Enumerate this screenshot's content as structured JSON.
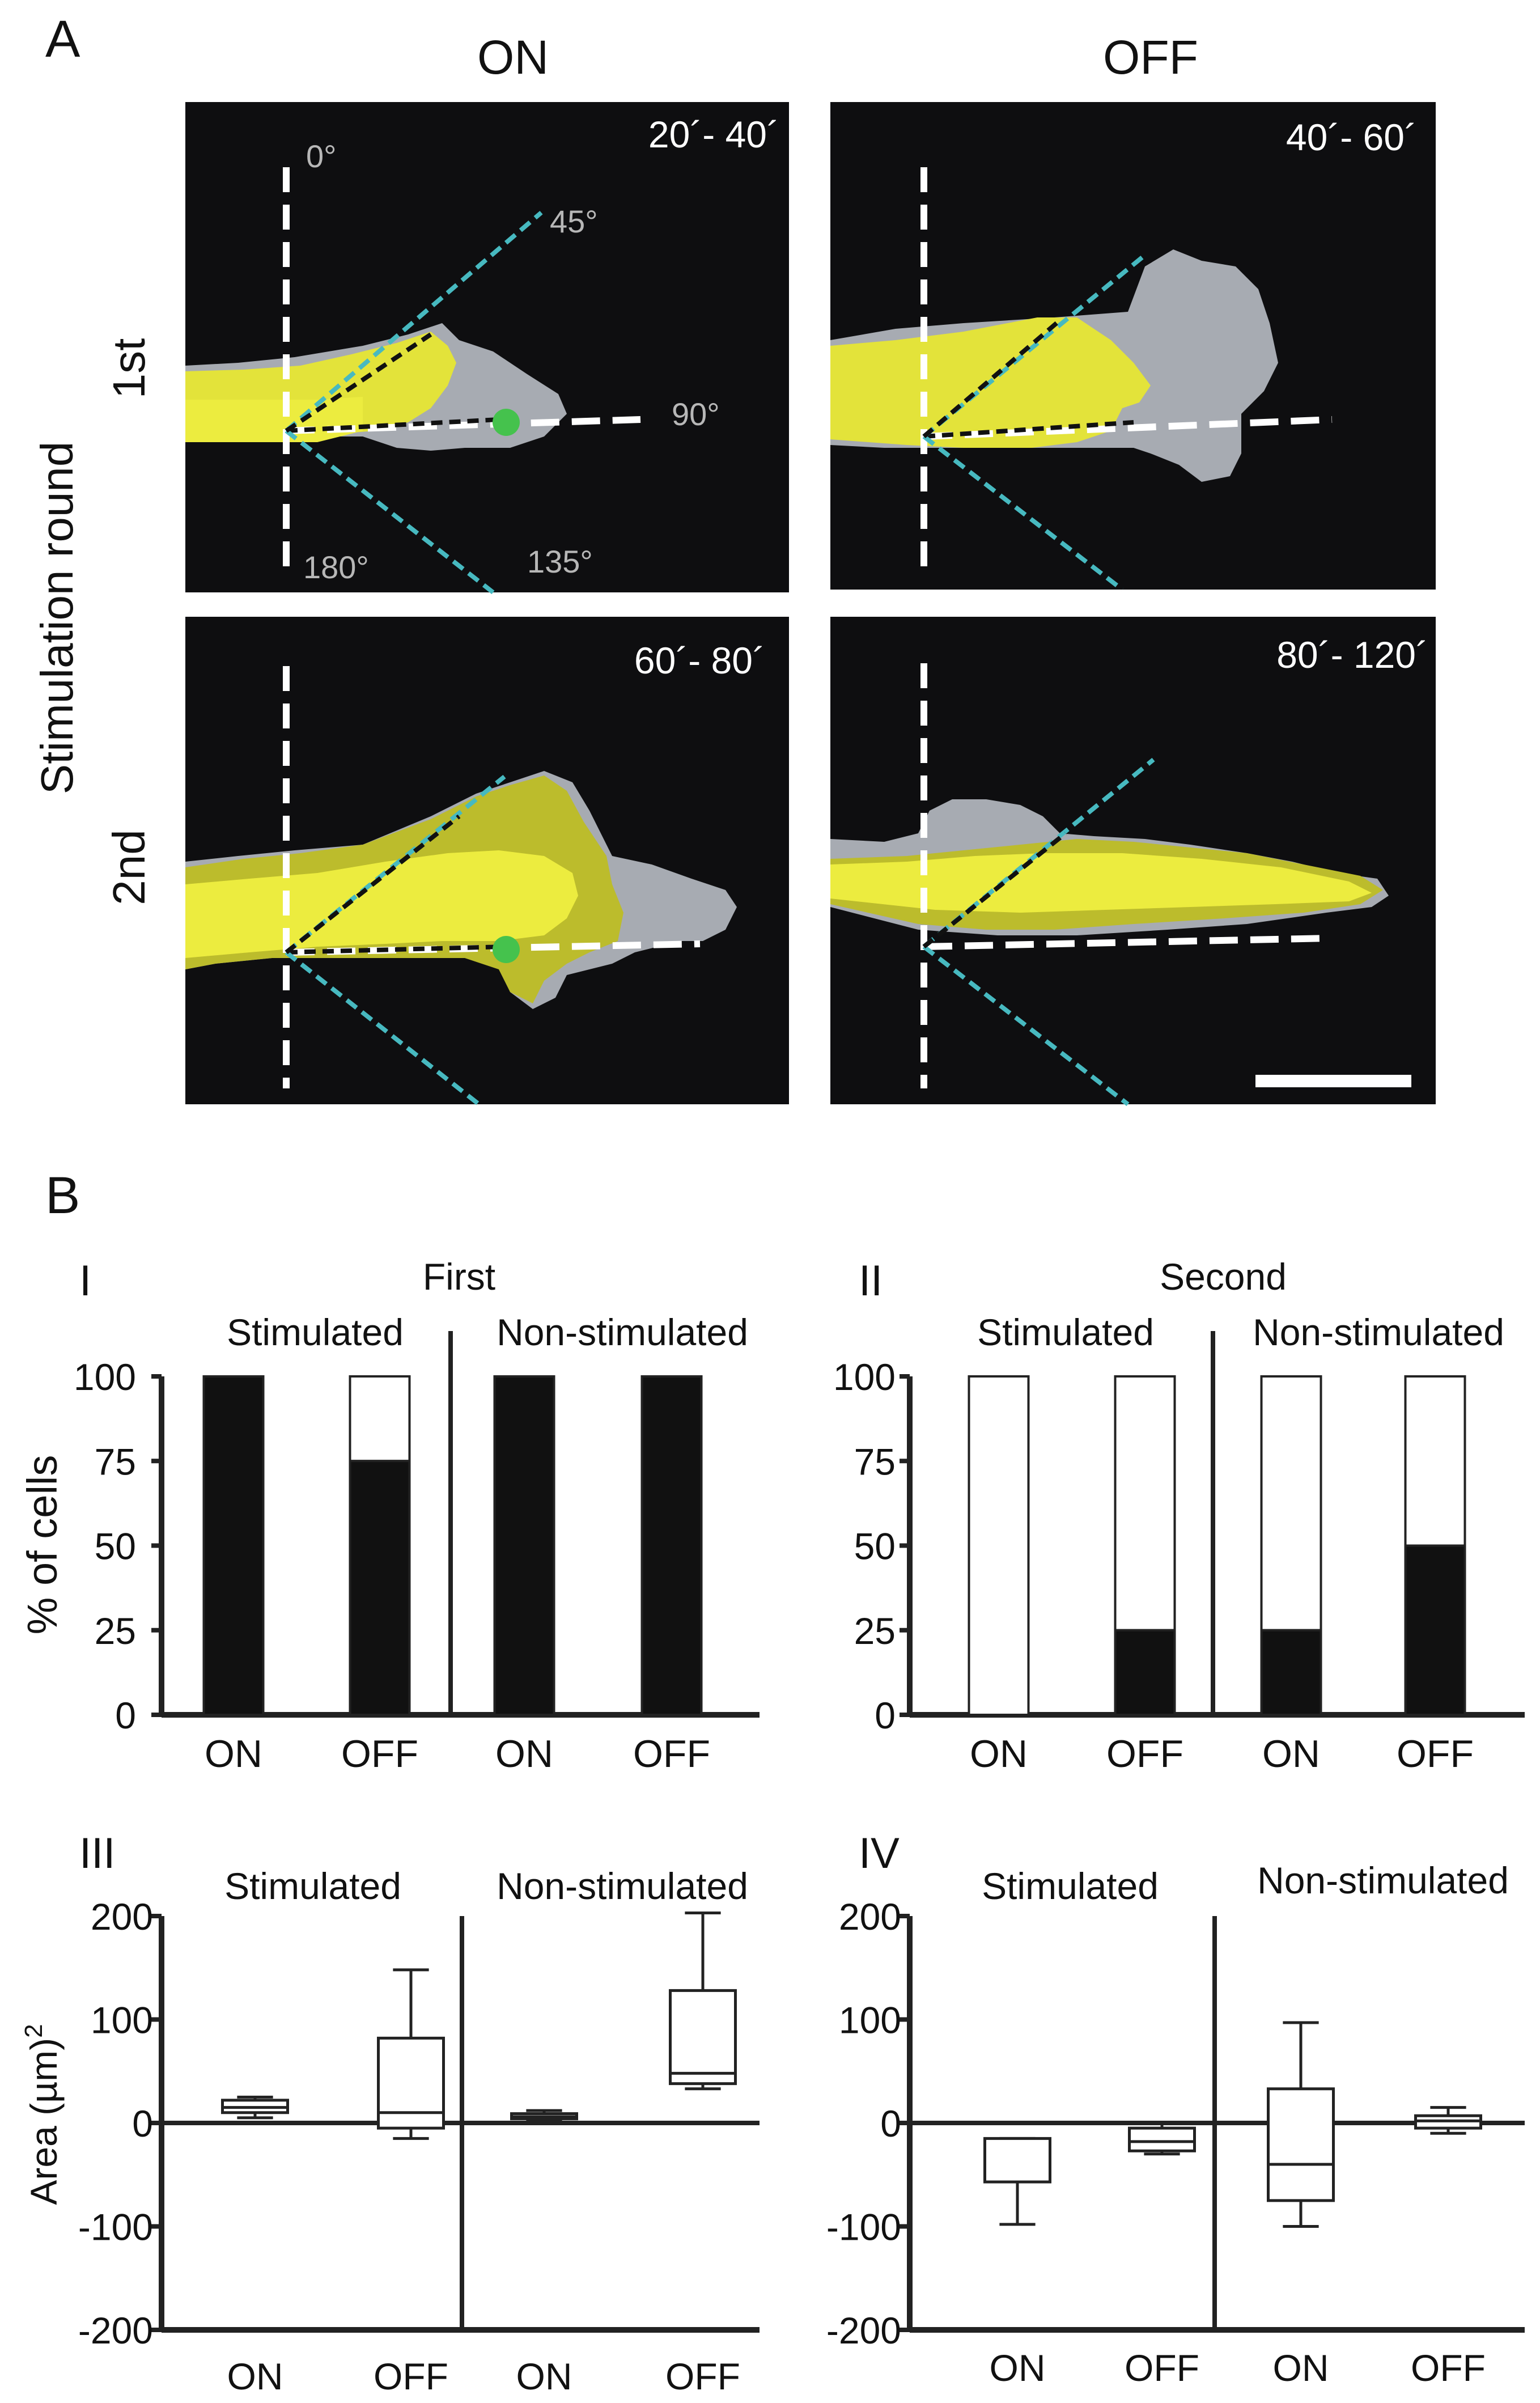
{
  "panel_a": {
    "label": "A",
    "col_headers": [
      "ON",
      "OFF"
    ],
    "row_title": "Stimulation round",
    "row_labels": [
      "1st",
      "2nd"
    ],
    "time_labels": [
      "20´- 40´",
      "40´- 60´",
      "60´- 80´",
      "80´- 120´"
    ],
    "angle_labels": [
      "0°",
      "45°",
      "90°",
      "135°",
      "180°"
    ]
  },
  "panel_b": {
    "label": "B",
    "colors": {
      "black_fill": "#111111",
      "white_fill": "#ffffff",
      "axis": "#222222"
    }
  },
  "chart_data": [
    {
      "type": "bar",
      "panel": "I",
      "title": "First",
      "groups": [
        "Stimulated",
        "Non-stimulated"
      ],
      "categories": [
        "ON",
        "OFF",
        "ON",
        "OFF"
      ],
      "ylabel": "% of cells",
      "ylim": [
        0,
        100
      ],
      "yticks": [
        "100",
        "75",
        "50",
        "25",
        "0"
      ],
      "series": [
        {
          "name": "black",
          "values": [
            100,
            75,
            100,
            100
          ]
        },
        {
          "name": "white",
          "values": [
            0,
            25,
            0,
            0
          ]
        }
      ]
    },
    {
      "type": "bar",
      "panel": "II",
      "title": "Second",
      "groups": [
        "Stimulated",
        "Non-stimulated"
      ],
      "categories": [
        "ON",
        "OFF",
        "ON",
        "OFF"
      ],
      "ylabel": "",
      "ylim": [
        0,
        100
      ],
      "yticks": [
        "100",
        "75",
        "50",
        "25",
        "0"
      ],
      "series": [
        {
          "name": "black",
          "values": [
            0,
            25,
            25,
            50
          ]
        },
        {
          "name": "white",
          "values": [
            100,
            75,
            75,
            50
          ]
        }
      ]
    },
    {
      "type": "box",
      "panel": "III",
      "groups": [
        "Stimulated",
        "Non-stimulated"
      ],
      "categories": [
        "ON",
        "OFF",
        "ON",
        "OFF"
      ],
      "ylabel": "Area (µm)",
      "ylabel_sup": "2",
      "ylim": [
        -200,
        200
      ],
      "yticks": [
        "200",
        "100",
        "0",
        "-100",
        "-200"
      ],
      "boxes": [
        {
          "min": 5,
          "q1": 10,
          "median": 15,
          "q3": 22,
          "max": 25
        },
        {
          "min": -15,
          "q1": -5,
          "median": 10,
          "q3": 82,
          "max": 148
        },
        {
          "min": 3,
          "q1": 4,
          "median": 6,
          "q3": 9,
          "max": 12
        },
        {
          "min": 33,
          "q1": 38,
          "median": 48,
          "q3": 128,
          "max": 203
        }
      ]
    },
    {
      "type": "box",
      "panel": "IV",
      "groups": [
        "Stimulated",
        "Non-stimulated"
      ],
      "categories": [
        "ON",
        "OFF",
        "ON",
        "OFF"
      ],
      "ylabel": "",
      "ylim": [
        -200,
        200
      ],
      "yticks": [
        "200",
        "100",
        "0",
        "-100",
        "-200"
      ],
      "boxes": [
        {
          "min": -98,
          "q1": -57,
          "median": -57,
          "q3": -15,
          "max": -15
        },
        {
          "min": -30,
          "q1": -27,
          "median": -18,
          "q3": -5,
          "max": 0
        },
        {
          "min": -100,
          "q1": -75,
          "median": -40,
          "q3": 33,
          "max": 97
        },
        {
          "min": -10,
          "q1": -5,
          "median": 2,
          "q3": 7,
          "max": 15
        }
      ]
    }
  ]
}
